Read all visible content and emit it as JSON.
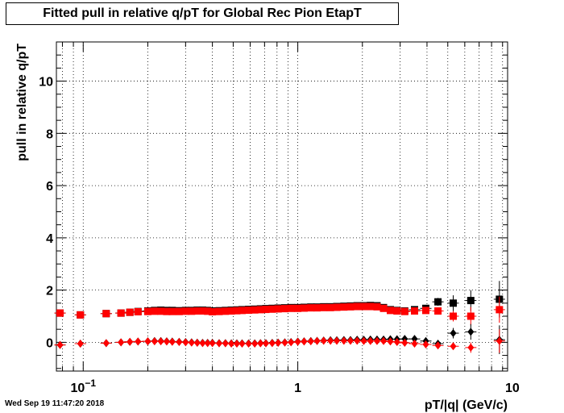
{
  "title": "Fitted pull in relative q/pT for Global Rec Pion EtapT",
  "timestamp": "Wed Sep 19 11:47:20 2018",
  "chart_data": {
    "type": "scatter",
    "title": "Fitted pull in relative q/pT for Global Rec Pion EtapT",
    "xlabel": "pT/|q| (GeV/c)",
    "ylabel": "pull in relative q/pT",
    "x_scale": "log",
    "xlim": [
      0.075,
      9.5
    ],
    "ylim": [
      -1.1,
      11.5
    ],
    "grid": true,
    "x_tick_labels": [
      {
        "value": 0.1,
        "base": "10",
        "exp": "−1"
      },
      {
        "value": 1,
        "base": "1",
        "exp": ""
      },
      {
        "value": 10,
        "base": "10",
        "exp": ""
      }
    ],
    "y_tick_labels": [
      0,
      2,
      4,
      6,
      8,
      10
    ],
    "series": [
      {
        "marker": "square",
        "color": "#000000",
        "x": [
          0.078,
          0.097,
          0.128,
          0.15,
          0.165,
          0.18,
          0.2,
          0.215,
          0.23,
          0.245,
          0.26,
          0.28,
          0.3,
          0.32,
          0.34,
          0.36,
          0.38,
          0.4,
          0.43,
          0.46,
          0.49,
          0.52,
          0.55,
          0.59,
          0.63,
          0.67,
          0.71,
          0.76,
          0.81,
          0.87,
          0.93,
          1.0,
          1.07,
          1.15,
          1.23,
          1.32,
          1.42,
          1.52,
          1.64,
          1.76,
          1.89,
          2.03,
          2.18,
          2.34,
          2.51,
          2.7,
          2.9,
          3.15,
          3.5,
          3.95,
          4.5,
          5.3,
          6.4,
          8.7
        ],
        "y": [
          1.12,
          1.05,
          1.1,
          1.12,
          1.15,
          1.18,
          1.2,
          1.22,
          1.23,
          1.22,
          1.22,
          1.21,
          1.22,
          1.22,
          1.23,
          1.23,
          1.22,
          1.2,
          1.21,
          1.22,
          1.23,
          1.24,
          1.25,
          1.26,
          1.27,
          1.28,
          1.29,
          1.3,
          1.31,
          1.32,
          1.33,
          1.33,
          1.34,
          1.35,
          1.35,
          1.36,
          1.36,
          1.37,
          1.38,
          1.39,
          1.4,
          1.4,
          1.41,
          1.4,
          1.33,
          1.25,
          1.22,
          1.2,
          1.25,
          1.3,
          1.55,
          1.5,
          1.6,
          1.65
        ],
        "yerr": [
          0,
          0,
          0,
          0,
          0,
          0,
          0,
          0,
          0,
          0,
          0,
          0,
          0,
          0,
          0,
          0,
          0,
          0,
          0,
          0,
          0,
          0,
          0,
          0,
          0,
          0,
          0,
          0,
          0,
          0,
          0,
          0,
          0,
          0,
          0,
          0,
          0,
          0,
          0,
          0,
          0,
          0,
          0,
          0,
          0,
          0,
          0,
          0,
          0,
          0,
          0.15,
          0.3,
          0.4,
          0.7
        ]
      },
      {
        "marker": "square",
        "color": "#ff0000",
        "x": [
          0.078,
          0.097,
          0.128,
          0.15,
          0.165,
          0.18,
          0.2,
          0.215,
          0.23,
          0.245,
          0.26,
          0.28,
          0.3,
          0.32,
          0.34,
          0.36,
          0.38,
          0.4,
          0.43,
          0.46,
          0.49,
          0.52,
          0.55,
          0.59,
          0.63,
          0.67,
          0.71,
          0.76,
          0.81,
          0.87,
          0.93,
          1.0,
          1.07,
          1.15,
          1.23,
          1.32,
          1.42,
          1.52,
          1.64,
          1.76,
          1.89,
          2.03,
          2.18,
          2.34,
          2.51,
          2.7,
          2.9,
          3.15,
          3.5,
          3.95,
          4.5,
          5.3,
          6.4,
          8.7
        ],
        "y": [
          1.12,
          1.05,
          1.1,
          1.12,
          1.15,
          1.17,
          1.18,
          1.19,
          1.19,
          1.18,
          1.18,
          1.18,
          1.19,
          1.19,
          1.2,
          1.2,
          1.19,
          1.17,
          1.18,
          1.19,
          1.2,
          1.21,
          1.22,
          1.23,
          1.24,
          1.25,
          1.26,
          1.27,
          1.28,
          1.29,
          1.3,
          1.3,
          1.31,
          1.32,
          1.32,
          1.33,
          1.33,
          1.34,
          1.35,
          1.36,
          1.37,
          1.37,
          1.37,
          1.36,
          1.3,
          1.22,
          1.2,
          1.18,
          1.2,
          1.22,
          1.2,
          1.0,
          1.0,
          1.25
        ],
        "yerr": [
          0,
          0,
          0,
          0,
          0,
          0,
          0,
          0,
          0,
          0,
          0,
          0,
          0,
          0,
          0,
          0,
          0,
          0,
          0,
          0,
          0,
          0,
          0,
          0,
          0,
          0,
          0,
          0,
          0,
          0,
          0,
          0,
          0,
          0,
          0,
          0,
          0,
          0,
          0,
          0,
          0,
          0,
          0,
          0,
          0,
          0,
          0,
          0,
          0,
          0,
          0.1,
          0.2,
          0.35,
          0.5
        ]
      },
      {
        "marker": "diamond",
        "color": "#000000",
        "x": [
          0.078,
          0.097,
          0.128,
          0.15,
          0.165,
          0.18,
          0.2,
          0.215,
          0.23,
          0.245,
          0.26,
          0.28,
          0.3,
          0.32,
          0.34,
          0.36,
          0.38,
          0.4,
          0.43,
          0.46,
          0.49,
          0.52,
          0.55,
          0.59,
          0.63,
          0.67,
          0.71,
          0.76,
          0.81,
          0.87,
          0.93,
          1.0,
          1.07,
          1.15,
          1.23,
          1.32,
          1.42,
          1.52,
          1.64,
          1.76,
          1.89,
          2.03,
          2.18,
          2.34,
          2.51,
          2.7,
          2.9,
          3.15,
          3.5,
          3.95,
          4.5,
          5.3,
          6.4,
          8.7
        ],
        "y": [
          -0.1,
          -0.05,
          -0.03,
          0.0,
          0.02,
          0.03,
          0.04,
          0.05,
          0.05,
          0.04,
          0.03,
          0.02,
          0.01,
          0.0,
          -0.01,
          -0.02,
          -0.02,
          -0.02,
          -0.03,
          -0.03,
          -0.04,
          -0.04,
          -0.04,
          -0.04,
          -0.04,
          -0.03,
          -0.03,
          -0.02,
          -0.01,
          0.0,
          0.01,
          0.03,
          0.04,
          0.05,
          0.06,
          0.07,
          0.08,
          0.08,
          0.09,
          0.09,
          0.1,
          0.1,
          0.11,
          0.11,
          0.11,
          0.12,
          0.12,
          0.13,
          0.13,
          0.05,
          -0.05,
          0.35,
          0.4,
          0.1
        ],
        "yerr": [
          0,
          0,
          0,
          0,
          0,
          0,
          0,
          0,
          0,
          0,
          0,
          0,
          0,
          0,
          0,
          0,
          0,
          0,
          0,
          0,
          0,
          0,
          0,
          0,
          0,
          0,
          0,
          0,
          0,
          0,
          0,
          0,
          0,
          0,
          0,
          0,
          0,
          0,
          0,
          0,
          0,
          0,
          0,
          0,
          0,
          0,
          0,
          0,
          0,
          0,
          0.1,
          0.2,
          0.3,
          0.55
        ]
      },
      {
        "marker": "diamond",
        "color": "#ff0000",
        "x": [
          0.078,
          0.097,
          0.128,
          0.15,
          0.165,
          0.18,
          0.2,
          0.215,
          0.23,
          0.245,
          0.26,
          0.28,
          0.3,
          0.32,
          0.34,
          0.36,
          0.38,
          0.4,
          0.43,
          0.46,
          0.49,
          0.52,
          0.55,
          0.59,
          0.63,
          0.67,
          0.71,
          0.76,
          0.81,
          0.87,
          0.93,
          1.0,
          1.07,
          1.15,
          1.23,
          1.32,
          1.42,
          1.52,
          1.64,
          1.76,
          1.89,
          2.03,
          2.18,
          2.34,
          2.51,
          2.7,
          2.9,
          3.15,
          3.5,
          3.95,
          4.5,
          5.3,
          6.4,
          8.7
        ],
        "y": [
          -0.1,
          -0.05,
          -0.03,
          0.0,
          0.02,
          0.03,
          0.04,
          0.04,
          0.04,
          0.03,
          0.02,
          0.01,
          0.0,
          -0.01,
          -0.02,
          -0.03,
          -0.03,
          -0.03,
          -0.04,
          -0.04,
          -0.05,
          -0.05,
          -0.05,
          -0.05,
          -0.05,
          -0.04,
          -0.04,
          -0.03,
          -0.02,
          -0.01,
          0.0,
          0.02,
          0.03,
          0.04,
          0.05,
          0.06,
          0.06,
          0.06,
          0.06,
          0.06,
          0.06,
          0.05,
          0.05,
          0.05,
          0.05,
          0.03,
          0.01,
          -0.02,
          -0.05,
          -0.08,
          -0.12,
          -0.15,
          -0.2,
          0.05
        ],
        "yerr": [
          0,
          0,
          0,
          0,
          0,
          0,
          0,
          0,
          0,
          0,
          0,
          0,
          0,
          0,
          0,
          0,
          0,
          0,
          0,
          0,
          0,
          0,
          0,
          0,
          0,
          0,
          0,
          0,
          0,
          0,
          0,
          0,
          0,
          0,
          0,
          0,
          0,
          0,
          0,
          0,
          0,
          0,
          0,
          0,
          0,
          0,
          0,
          0,
          0,
          0,
          0.05,
          0.1,
          0.2,
          0.45
        ]
      }
    ]
  }
}
